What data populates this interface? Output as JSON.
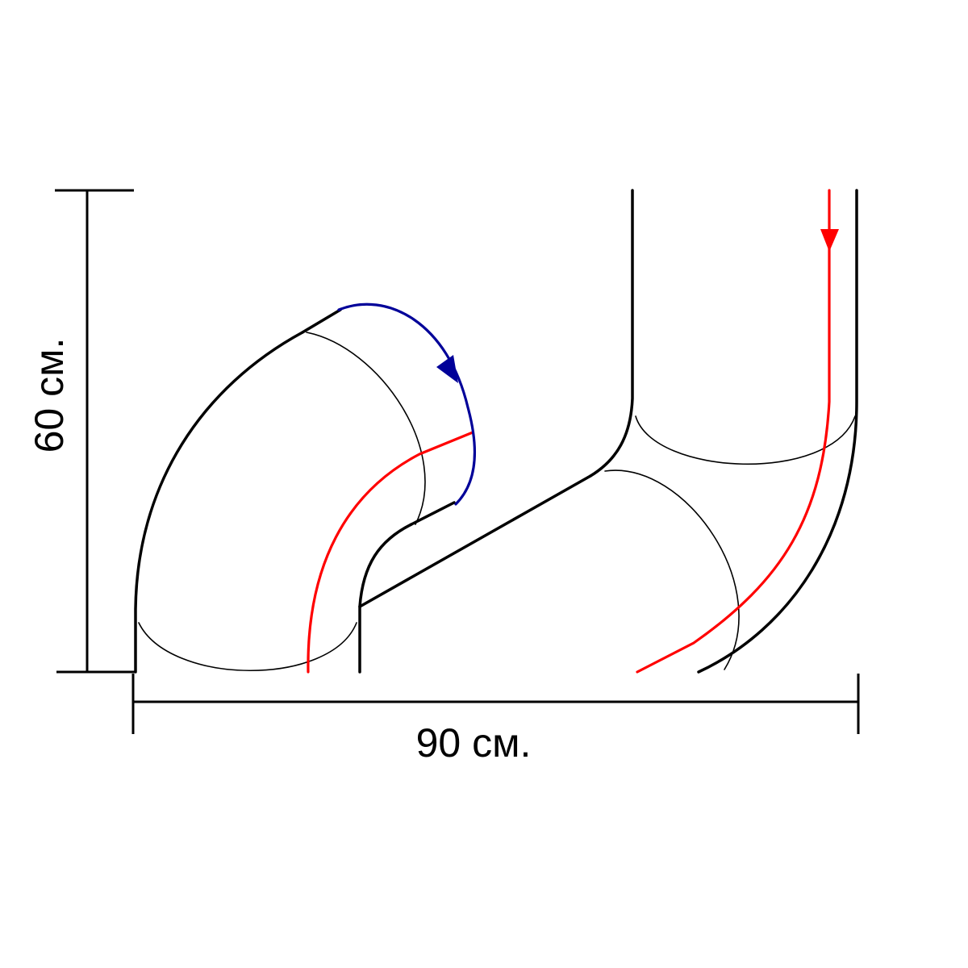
{
  "diagram": {
    "height_label": "60 см.",
    "width_label": "90 см.",
    "colors": {
      "outline": "#000000",
      "flow_red": "#ff0000",
      "flow_blue": "#000099"
    }
  }
}
